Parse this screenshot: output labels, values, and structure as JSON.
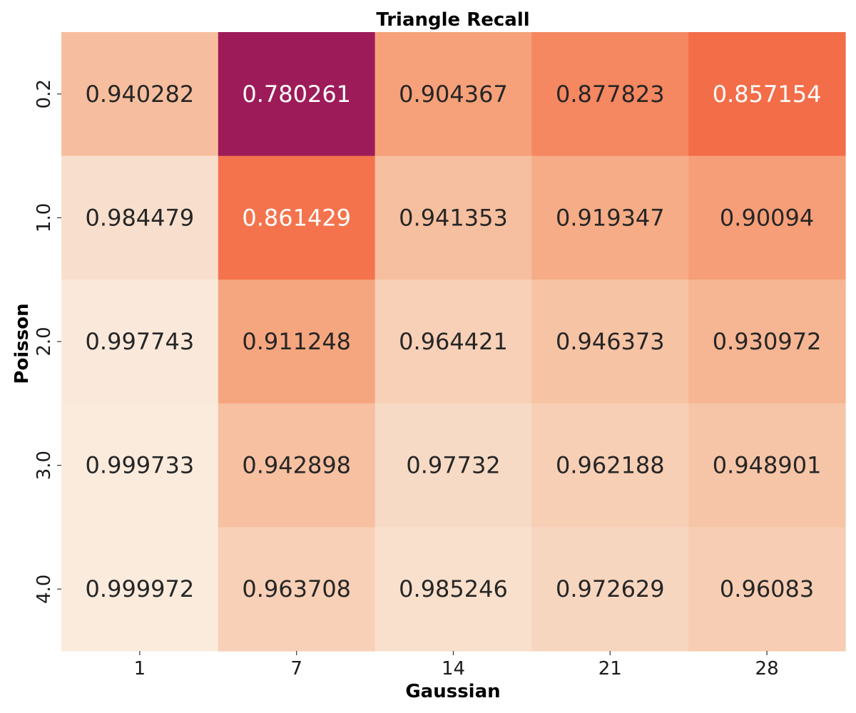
{
  "chart_data": {
    "type": "heatmap",
    "title": "Triangle Recall",
    "xlabel": "Gaussian",
    "ylabel": "Poisson",
    "x_categories": [
      "1",
      "7",
      "14",
      "21",
      "28"
    ],
    "y_categories": [
      "0.2",
      "1.0",
      "2.0",
      "3.0",
      "4.0"
    ],
    "values": [
      [
        0.940282,
        0.780261,
        0.904367,
        0.877823,
        0.857154
      ],
      [
        0.984479,
        0.861429,
        0.941353,
        0.919347,
        0.90094
      ],
      [
        0.997743,
        0.911248,
        0.964421,
        0.946373,
        0.930972
      ],
      [
        0.999733,
        0.942898,
        0.97732,
        0.962188,
        0.948901
      ],
      [
        0.999972,
        0.963708,
        0.985246,
        0.972629,
        0.96083
      ]
    ],
    "value_labels": [
      [
        "0.940282",
        "0.780261",
        "0.904367",
        "0.877823",
        "0.857154"
      ],
      [
        "0.984479",
        "0.861429",
        "0.941353",
        "0.919347",
        "0.90094"
      ],
      [
        "0.997743",
        "0.911248",
        "0.964421",
        "0.946373",
        "0.930972"
      ],
      [
        "0.999733",
        "0.942898",
        "0.97732",
        "0.962188",
        "0.948901"
      ],
      [
        "0.999972",
        "0.963708",
        "0.985246",
        "0.972629",
        "0.96083"
      ]
    ],
    "colormap": "rocket",
    "color_range": [
      0.780261,
      0.999972
    ],
    "colorbar": false,
    "grid": false
  }
}
